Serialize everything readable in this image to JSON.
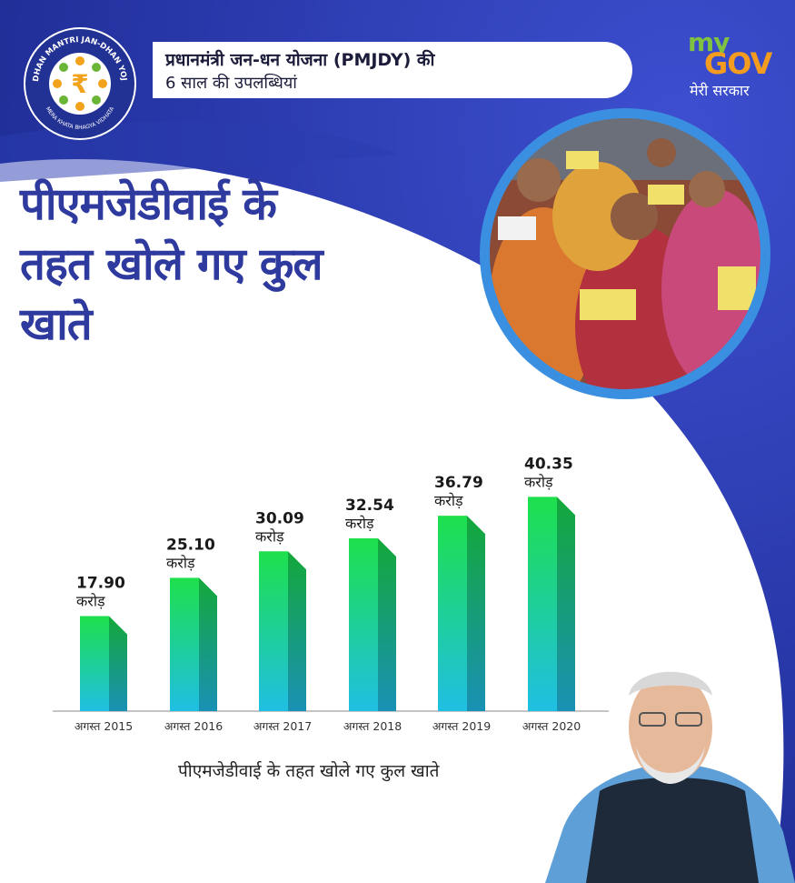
{
  "header": {
    "line1": "प्रधानमंत्री जन-धन योजना (PMJDY) की",
    "line2": "6 साल की उपलब्धियां"
  },
  "logo": {
    "top_text": "PRADHAN MANTRI JAN-DHAN YOJANA",
    "bottom_text": "MERA KHATA BHAGYA VIDHATA",
    "symbol": "₹"
  },
  "brand": {
    "my": "my",
    "gov": "GOV",
    "tagline": "मेरी सरकार"
  },
  "main_title": {
    "line1": "पीएमजेडीवाई के",
    "line2": "तहत खोले गए कुल",
    "line3": "खाते"
  },
  "colors": {
    "navy": "#2233a6",
    "title_blue": "#2f3a9e",
    "bar_top": "#1ee04c",
    "bar_bottom": "#1fbfe3",
    "mygov_green": "#7fc241",
    "mygov_orange": "#f39c1f"
  },
  "chart_data": {
    "type": "bar",
    "categories": [
      "अगस्त 2015",
      "अगस्त 2016",
      "अगस्त 2017",
      "अगस्त 2018",
      "अगस्त 2019",
      "अगस्त 2020"
    ],
    "values": [
      17.9,
      25.1,
      30.09,
      32.54,
      36.79,
      40.35
    ],
    "value_labels": [
      "17.90",
      "25.10",
      "30.09",
      "32.54",
      "36.79",
      "40.35"
    ],
    "unit": "करोड़",
    "xlabel": "पीएमजेडीवाई के तहत खोले गए कुल खाते",
    "ylabel": "",
    "grid": false
  }
}
